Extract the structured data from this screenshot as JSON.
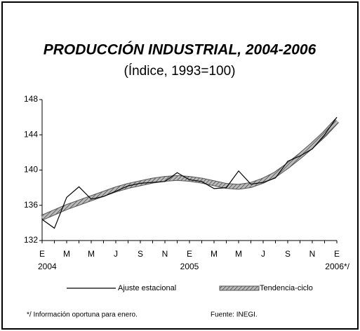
{
  "chart_data": {
    "type": "line",
    "title": "PRODUCCIÓN INDUSTRIAL, 2004-2006",
    "subtitle": "(Índice, 1993=100)",
    "categories": [
      "E",
      null,
      "M",
      null,
      "M",
      null,
      "J",
      null,
      "S",
      null,
      "N",
      null,
      "E",
      null,
      "M",
      null,
      "M",
      null,
      "J",
      null,
      "S",
      null,
      "N",
      null,
      "E"
    ],
    "years": [
      "2004",
      "2005",
      "2006*/"
    ],
    "series": [
      {
        "name": "Ajuste estacional",
        "color": "#000000",
        "values": [
          134.4,
          133.4,
          136.9,
          138.1,
          136.7,
          137.0,
          137.6,
          138.2,
          138.5,
          138.6,
          138.7,
          139.7,
          138.9,
          138.7,
          137.9,
          138.0,
          139.9,
          138.4,
          138.6,
          139.1,
          141.0,
          141.6,
          142.4,
          144.0,
          146.0
        ]
      },
      {
        "name": "Tendencia-ciclo",
        "color": "#888888",
        "values": [
          134.6,
          135.2,
          135.8,
          136.3,
          136.8,
          137.3,
          137.8,
          138.2,
          138.5,
          138.8,
          139.0,
          139.1,
          139.0,
          138.8,
          138.5,
          138.2,
          138.1,
          138.3,
          138.8,
          139.5,
          140.5,
          141.6,
          142.8,
          144.1,
          145.6
        ]
      }
    ],
    "ylim": [
      132,
      148
    ],
    "yticks": [
      132,
      136,
      140,
      144,
      148
    ],
    "footnote": "*/ Información  oportuna  para  enero.",
    "source": "Fuente: INEGI."
  }
}
